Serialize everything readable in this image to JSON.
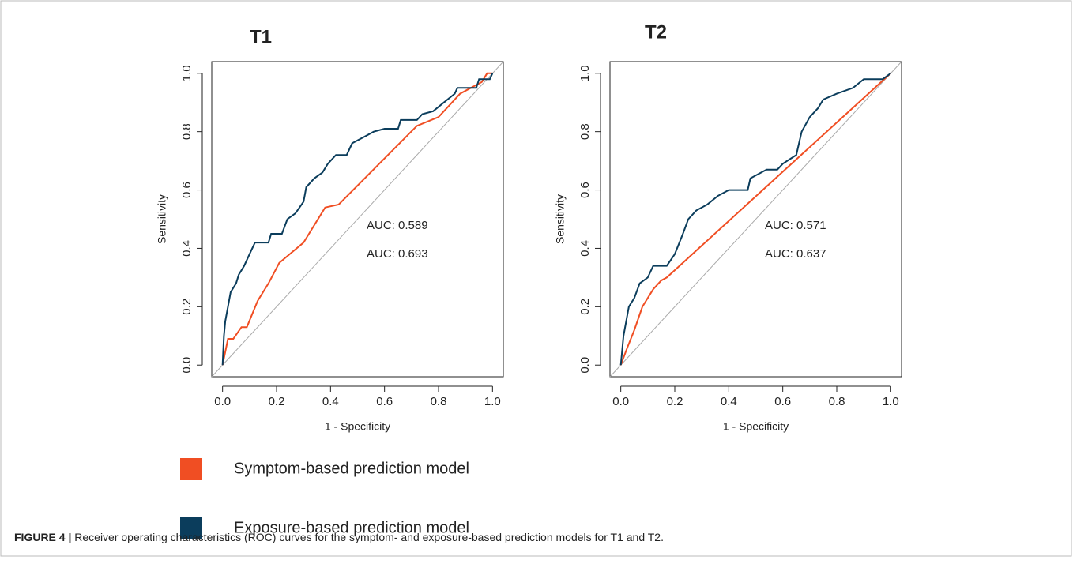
{
  "chart_data": [
    {
      "type": "line",
      "title": "T1",
      "x_label": "1 - Specificity",
      "y_label": "Sensitivity",
      "xlim": [
        -0.04,
        1.04
      ],
      "ylim": [
        -0.04,
        1.04
      ],
      "xticks": [
        {
          "value": 0,
          "label": "0.0"
        },
        {
          "value": 0.2,
          "label": "0.2"
        },
        {
          "value": 0.4,
          "label": "0.4"
        },
        {
          "value": 0.6,
          "label": "0.6"
        },
        {
          "value": 0.8,
          "label": "0.8"
        },
        {
          "value": 1,
          "label": "1.0"
        }
      ],
      "yticks": [
        {
          "value": 0,
          "label": "0.0"
        },
        {
          "value": 0.2,
          "label": "0.2"
        },
        {
          "value": 0.4,
          "label": "0.4"
        },
        {
          "value": 0.6,
          "label": "0.6"
        },
        {
          "value": 0.8,
          "label": "0.8"
        },
        {
          "value": 1,
          "label": "1.0"
        }
      ],
      "series": [
        {
          "color": "#f04e23",
          "x": [
            0,
            0.02,
            0.04,
            0.07,
            0.09,
            0.13,
            0.17,
            0.21,
            0.3,
            0.38,
            0.43,
            0.72,
            0.8,
            0.85,
            0.88,
            0.96,
            0.98,
            1
          ],
          "values": [
            0,
            0.09,
            0.09,
            0.13,
            0.13,
            0.22,
            0.28,
            0.35,
            0.42,
            0.54,
            0.55,
            0.82,
            0.85,
            0.9,
            0.93,
            0.97,
            1,
            1
          ]
        },
        {
          "color": "#0b3d5c",
          "x": [
            0,
            0.005,
            0.01,
            0.02,
            0.03,
            0.05,
            0.06,
            0.08,
            0.1,
            0.12,
            0.17,
            0.18,
            0.22,
            0.24,
            0.27,
            0.3,
            0.31,
            0.34,
            0.37,
            0.39,
            0.42,
            0.46,
            0.48,
            0.52,
            0.56,
            0.6,
            0.65,
            0.66,
            0.72,
            0.74,
            0.78,
            0.82,
            0.86,
            0.87,
            0.94,
            0.95,
            0.99,
            1
          ],
          "values": [
            0,
            0.1,
            0.15,
            0.2,
            0.25,
            0.28,
            0.31,
            0.34,
            0.38,
            0.42,
            0.42,
            0.45,
            0.45,
            0.5,
            0.52,
            0.56,
            0.61,
            0.64,
            0.66,
            0.69,
            0.72,
            0.72,
            0.76,
            0.78,
            0.8,
            0.81,
            0.81,
            0.84,
            0.84,
            0.86,
            0.87,
            0.9,
            0.93,
            0.95,
            0.95,
            0.98,
            0.98,
            1
          ]
        }
      ],
      "annotations": [
        {
          "text": "AUC: 0.589",
          "color": "#f04e23"
        },
        {
          "text": "AUC: 0.693",
          "color": "#0b3d5c"
        }
      ]
    },
    {
      "type": "line",
      "title": "T2",
      "x_label": "1 - Specificity",
      "y_label": "Sensitivity",
      "xlim": [
        -0.04,
        1.04
      ],
      "ylim": [
        -0.04,
        1.04
      ],
      "xticks": [
        {
          "value": 0,
          "label": "0.0"
        },
        {
          "value": 0.2,
          "label": "0.2"
        },
        {
          "value": 0.4,
          "label": "0.4"
        },
        {
          "value": 0.6,
          "label": "0.6"
        },
        {
          "value": 0.8,
          "label": "0.8"
        },
        {
          "value": 1,
          "label": "1.0"
        }
      ],
      "yticks": [
        {
          "value": 0,
          "label": "0.0"
        },
        {
          "value": 0.2,
          "label": "0.2"
        },
        {
          "value": 0.4,
          "label": "0.4"
        },
        {
          "value": 0.6,
          "label": "0.6"
        },
        {
          "value": 0.8,
          "label": "0.8"
        },
        {
          "value": 1,
          "label": "1.0"
        }
      ],
      "series": [
        {
          "color": "#f04e23",
          "x": [
            0,
            0.02,
            0.05,
            0.08,
            0.12,
            0.15,
            0.17,
            1
          ],
          "values": [
            0,
            0.05,
            0.12,
            0.2,
            0.26,
            0.29,
            0.3,
            1
          ]
        },
        {
          "color": "#0b3d5c",
          "x": [
            0,
            0.01,
            0.02,
            0.03,
            0.05,
            0.07,
            0.1,
            0.12,
            0.17,
            0.2,
            0.23,
            0.25,
            0.28,
            0.32,
            0.36,
            0.4,
            0.47,
            0.48,
            0.54,
            0.58,
            0.6,
            0.65,
            0.66,
            0.67,
            0.7,
            0.73,
            0.75,
            0.8,
            0.86,
            0.9,
            0.97,
            1
          ],
          "values": [
            0,
            0.1,
            0.15,
            0.2,
            0.23,
            0.28,
            0.3,
            0.34,
            0.34,
            0.38,
            0.45,
            0.5,
            0.53,
            0.55,
            0.58,
            0.6,
            0.6,
            0.64,
            0.67,
            0.67,
            0.69,
            0.72,
            0.76,
            0.8,
            0.85,
            0.88,
            0.91,
            0.93,
            0.95,
            0.98,
            0.98,
            1
          ]
        }
      ],
      "annotations": [
        {
          "text": "AUC: 0.571",
          "color": "#f04e23"
        },
        {
          "text": "AUC: 0.637",
          "color": "#0b3d5c"
        }
      ]
    }
  ],
  "legend": [
    {
      "name": "Symptom-based prediction model",
      "color": "#f04e23"
    },
    {
      "name": "Exposure-based prediction model",
      "color": "#0b3d5c"
    }
  ],
  "caption": {
    "label": "FIGURE 4 |",
    "text": "Receiver operating characteristics (ROC) curves for the symptom- and exposure-based prediction models for T1 and T2."
  }
}
